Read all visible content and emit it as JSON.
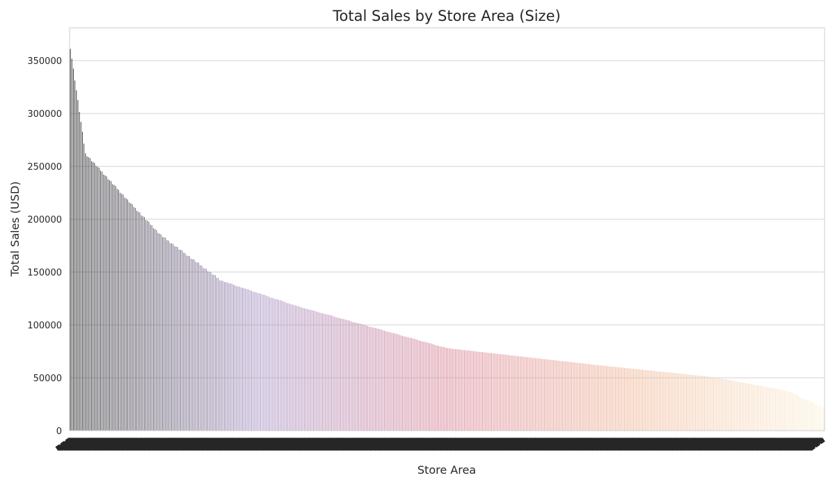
{
  "chart_data": {
    "type": "bar",
    "title": "Total Sales by Store Area (Size)",
    "xlabel": "Store Area",
    "ylabel": "Total Sales (USD)",
    "ylim": [
      0,
      381000
    ],
    "yticks": [
      0,
      50000,
      100000,
      150000,
      200000,
      250000,
      300000,
      350000
    ],
    "grid": "horizontal",
    "legend": "none",
    "palette_start": "#2b2b2b",
    "palette_mid_1": "#a996c4",
    "palette_mid_2": "#d9879a",
    "palette_mid_3": "#f0b99a",
    "palette_end": "#fbf3dc",
    "category_count": 500,
    "value_profile_note_free": true,
    "profile_positions": [
      0,
      0.02,
      0.08,
      0.12,
      0.2,
      0.3,
      0.5,
      0.7,
      0.85,
      0.95,
      1.0
    ],
    "profile_values": [
      362000,
      262000,
      215000,
      185000,
      142000,
      118000,
      78000,
      62000,
      51000,
      38000,
      22000
    ]
  }
}
